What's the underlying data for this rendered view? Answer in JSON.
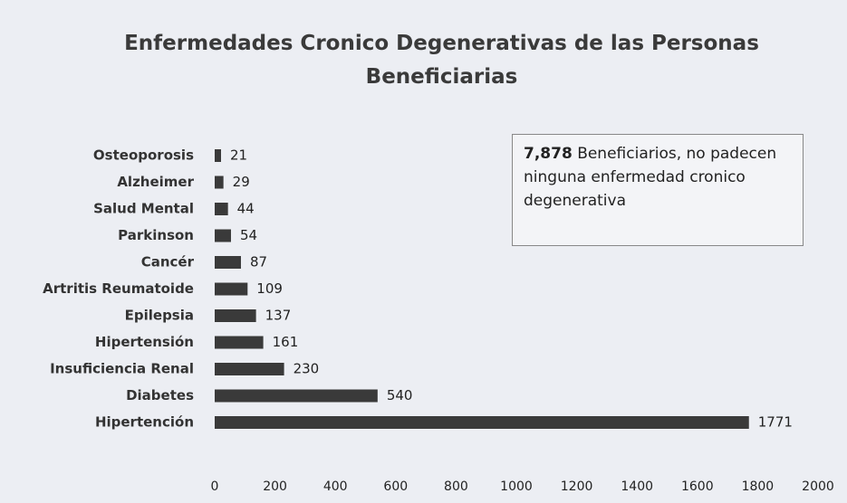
{
  "chart_data": {
    "type": "barh",
    "title": "Enfermedades Cronico Degenerativas de las Personas Beneficiarias",
    "categories": [
      "Osteoporosis",
      "Alzheimer",
      "Salud Mental",
      "Parkinson",
      "Cancér",
      "Artritis Reumatoide",
      "Epilepsia",
      "Hipertensión",
      "Insuficiencia Renal",
      "Diabetes",
      "Hipertención"
    ],
    "values": [
      21,
      29,
      44,
      54,
      87,
      109,
      137,
      161,
      230,
      540,
      1771
    ],
    "color": "#3a3a3a",
    "xlim": [
      0,
      2000
    ],
    "xticks": [
      0,
      200,
      400,
      600,
      800,
      1000,
      1200,
      1400,
      1600,
      1800,
      2000
    ],
    "grid": false,
    "annotation": {
      "bold": "7,878",
      "text": "Beneficiarios, no padecen ninguna enfermedad cronico degenerativa"
    }
  }
}
